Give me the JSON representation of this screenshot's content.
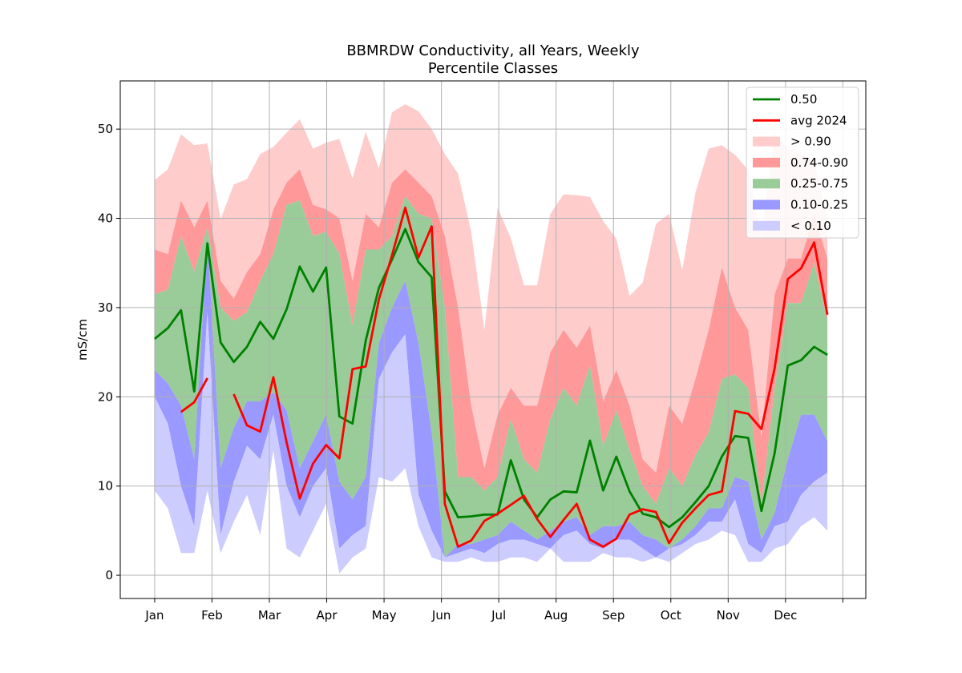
{
  "chart_data": {
    "type": "area",
    "title": [
      "BBMRDW Conductivity, all Years, Weekly",
      "Percentile Classes"
    ],
    "xlabel": "",
    "ylabel": "mS/cm",
    "ylim": [
      -2.6,
      55.4
    ],
    "xlim": [
      -0.6,
      12.4
    ],
    "grid": true,
    "legend_position": "top-right",
    "x_ticks": [
      0,
      1,
      2,
      3,
      4,
      5,
      6,
      7,
      8,
      9,
      10,
      11,
      12
    ],
    "x_tick_labels": [
      "Jan",
      "Feb",
      "Mar",
      "Apr",
      "May",
      "Jun",
      "Jul",
      "Aug",
      "Sep",
      "Oct",
      "Nov",
      "Dec",
      ""
    ],
    "y_ticks": [
      0,
      10,
      20,
      30,
      40,
      50
    ],
    "y_tick_labels": [
      "0",
      "10",
      "20",
      "30",
      "40",
      "50"
    ],
    "x_weeks": [
      0.0,
      0.23,
      0.46,
      0.69,
      0.92,
      1.15,
      1.38,
      1.61,
      1.84,
      2.07,
      2.3,
      2.53,
      2.76,
      2.99,
      3.22,
      3.45,
      3.68,
      3.91,
      4.14,
      4.37,
      4.6,
      4.83,
      5.06,
      5.29,
      5.52,
      5.75,
      5.98,
      6.21,
      6.44,
      6.67,
      6.9,
      7.13,
      7.36,
      7.59,
      7.82,
      8.05,
      8.28,
      8.51,
      8.74,
      8.97,
      9.2,
      9.43,
      9.66,
      9.89,
      10.12,
      10.35,
      10.58,
      10.81,
      11.04,
      11.27,
      11.5,
      11.73
    ],
    "bands": [
      {
        "name": "> 0.90",
        "color": "#ffcccc",
        "lower": [
          36.5,
          36.0,
          42.0,
          39.0,
          42.0,
          33.0,
          31.0,
          34.0,
          36.0,
          41.0,
          44.0,
          45.5,
          41.5,
          41.0,
          40.0,
          33.0,
          40.5,
          39.0,
          44.0,
          45.5,
          44.0,
          42.5,
          38.0,
          30.0,
          19.0,
          12.0,
          18.0,
          21.0,
          19.0,
          19.0,
          25.0,
          27.5,
          25.5,
          28.0,
          19.5,
          23.0,
          19.0,
          13.0,
          11.5,
          19.0,
          17.0,
          22.0,
          27.5,
          34.5,
          30.0,
          27.5,
          15.5,
          31.5,
          35.5,
          35.5,
          40.5,
          35.5
        ],
        "upper": [
          44.3,
          45.5,
          49.4,
          48.2,
          48.4,
          39.9,
          43.8,
          44.4,
          47.2,
          48.0,
          49.6,
          51.1,
          47.8,
          48.5,
          48.9,
          44.5,
          49.7,
          45.6,
          51.9,
          52.8,
          52.0,
          50.0,
          47.2,
          45.0,
          38.5,
          27.5,
          41.2,
          37.8,
          32.5,
          32.5,
          40.5,
          42.7,
          42.6,
          42.4,
          39.7,
          37.7,
          31.3,
          32.8,
          39.4,
          40.5,
          34.2,
          42.9,
          47.8,
          48.2,
          47.1,
          45.4,
          38.0,
          49.5,
          47.8,
          47.2,
          46.5,
          40.0
        ]
      },
      {
        "name": "0.74-0.90",
        "color": "#ff9999",
        "lower": [
          31.5,
          32.0,
          38.0,
          34.0,
          39.0,
          30.0,
          28.5,
          29.5,
          33.0,
          36.0,
          41.5,
          42.0,
          38.0,
          38.5,
          36.0,
          28.0,
          36.5,
          36.5,
          38.0,
          42.5,
          40.5,
          40.0,
          30.0,
          11.0,
          11.0,
          9.5,
          11.0,
          17.5,
          13.0,
          11.5,
          17.5,
          21.0,
          19.0,
          23.5,
          14.5,
          18.5,
          14.0,
          10.0,
          8.0,
          12.0,
          10.0,
          13.5,
          16.0,
          22.0,
          22.5,
          21.0,
          8.0,
          21.0,
          30.5,
          30.5,
          35.0,
          28.5
        ],
        "upper": [
          36.5,
          36.0,
          42.0,
          39.0,
          42.0,
          33.0,
          31.0,
          34.0,
          36.0,
          41.0,
          44.0,
          45.5,
          41.5,
          41.0,
          40.0,
          33.0,
          40.5,
          39.0,
          44.0,
          45.5,
          44.0,
          42.5,
          38.0,
          30.0,
          19.0,
          12.0,
          18.0,
          21.0,
          19.0,
          19.0,
          25.0,
          27.5,
          25.5,
          28.0,
          19.5,
          23.0,
          19.0,
          13.0,
          11.5,
          19.0,
          17.0,
          22.0,
          27.5,
          34.5,
          30.0,
          27.5,
          15.5,
          31.5,
          35.5,
          35.5,
          40.5,
          35.5
        ]
      },
      {
        "name": "0.25-0.75",
        "color": "#99cc99",
        "lower": [
          23.0,
          21.5,
          19.0,
          13.0,
          38.0,
          12.0,
          16.5,
          19.5,
          19.5,
          20.5,
          18.5,
          12.0,
          15.0,
          18.0,
          10.5,
          8.5,
          11.0,
          26.0,
          30.0,
          33.0,
          26.0,
          16.0,
          2.0,
          3.5,
          3.5,
          4.0,
          4.5,
          6.0,
          5.0,
          4.0,
          5.0,
          6.0,
          6.5,
          4.5,
          5.5,
          5.5,
          6.0,
          4.5,
          4.0,
          3.0,
          4.0,
          5.5,
          7.5,
          7.5,
          11.0,
          10.5,
          4.0,
          7.0,
          13.0,
          18.0,
          18.0,
          15.0
        ],
        "upper": [
          31.5,
          32.0,
          38.0,
          34.0,
          39.0,
          30.0,
          28.5,
          29.5,
          33.0,
          36.0,
          41.5,
          42.0,
          38.0,
          38.5,
          36.0,
          28.0,
          36.5,
          36.5,
          38.0,
          42.5,
          40.5,
          40.0,
          30.0,
          11.0,
          11.0,
          9.5,
          11.0,
          17.5,
          13.0,
          11.5,
          17.5,
          21.0,
          19.0,
          23.5,
          14.5,
          18.5,
          14.0,
          10.0,
          8.0,
          12.0,
          10.0,
          13.5,
          16.0,
          22.0,
          22.5,
          21.0,
          8.0,
          21.0,
          30.5,
          30.5,
          35.0,
          28.5
        ]
      },
      {
        "name": "0.10-0.25",
        "color": "#9999ff",
        "lower": [
          20.0,
          17.0,
          10.0,
          5.5,
          29.5,
          4.5,
          10.5,
          14.5,
          13.0,
          18.0,
          10.0,
          6.5,
          10.0,
          12.0,
          3.0,
          4.5,
          5.5,
          22.0,
          25.0,
          27.0,
          9.0,
          5.0,
          2.0,
          2.5,
          3.0,
          2.5,
          3.5,
          4.0,
          4.0,
          3.5,
          3.0,
          4.5,
          5.0,
          3.5,
          3.0,
          4.0,
          4.0,
          3.0,
          2.0,
          3.0,
          3.5,
          4.5,
          6.0,
          6.0,
          8.5,
          3.5,
          2.5,
          5.5,
          6.0,
          9.0,
          10.5,
          11.5
        ],
        "upper": [
          23.0,
          21.5,
          19.0,
          13.0,
          38.0,
          12.0,
          16.5,
          19.5,
          19.5,
          20.5,
          18.5,
          12.0,
          15.0,
          18.0,
          10.5,
          8.5,
          11.0,
          26.0,
          30.0,
          33.0,
          26.0,
          16.0,
          2.0,
          3.5,
          3.5,
          4.0,
          4.5,
          6.0,
          5.0,
          4.0,
          5.0,
          6.0,
          6.5,
          4.5,
          5.5,
          5.5,
          6.0,
          4.5,
          4.0,
          3.0,
          4.0,
          5.5,
          7.5,
          7.5,
          11.0,
          10.5,
          4.0,
          7.0,
          13.0,
          18.0,
          18.0,
          15.0
        ]
      },
      {
        "name": "< 0.10",
        "color": "#ccccff",
        "lower": [
          9.5,
          7.5,
          2.5,
          2.5,
          9.5,
          2.5,
          6.0,
          9.0,
          4.5,
          14.0,
          3.0,
          2.0,
          5.0,
          8.0,
          0.2,
          2.0,
          3.0,
          11.0,
          10.5,
          12.0,
          5.5,
          2.0,
          1.5,
          1.5,
          2.0,
          1.5,
          1.5,
          2.0,
          2.0,
          1.5,
          3.0,
          1.5,
          1.5,
          1.5,
          2.5,
          2.0,
          2.0,
          1.5,
          2.0,
          1.5,
          2.5,
          3.5,
          4.0,
          5.0,
          4.5,
          1.5,
          1.5,
          3.0,
          3.5,
          5.5,
          6.5,
          5.0
        ],
        "upper": [
          20.0,
          17.0,
          10.0,
          5.5,
          29.5,
          4.5,
          10.5,
          14.5,
          13.0,
          18.0,
          10.0,
          6.5,
          10.0,
          12.0,
          3.0,
          4.5,
          5.5,
          22.0,
          25.0,
          27.0,
          9.0,
          5.0,
          2.0,
          2.5,
          3.0,
          2.5,
          3.5,
          4.0,
          4.0,
          3.5,
          3.0,
          4.5,
          5.0,
          3.5,
          3.0,
          4.0,
          4.0,
          3.0,
          2.0,
          3.0,
          3.5,
          4.5,
          6.0,
          6.0,
          8.5,
          3.5,
          2.5,
          5.5,
          6.0,
          9.0,
          10.5,
          11.5
        ]
      }
    ],
    "series": [
      {
        "name": "0.50",
        "color": "#008000",
        "values": [
          26.5,
          27.7,
          29.7,
          20.6,
          37.2,
          26.1,
          23.9,
          25.6,
          28.4,
          26.5,
          29.8,
          34.6,
          31.8,
          34.5,
          17.8,
          17.0,
          26.3,
          32.2,
          35.4,
          38.8,
          35.1,
          33.4,
          9.4,
          6.5,
          6.6,
          6.8,
          6.8,
          12.9,
          8.5,
          6.5,
          8.5,
          9.4,
          9.3,
          15.1,
          9.5,
          13.3,
          9.4,
          6.9,
          6.5,
          5.4,
          6.5,
          8.2,
          10.0,
          13.3,
          15.6,
          15.4,
          7.2,
          13.7,
          23.5,
          24.1,
          25.6,
          24.7
        ]
      },
      {
        "name": "avg 2024",
        "color": "#ff0000",
        "values": [
          null,
          null,
          18.3,
          19.4,
          22.1,
          null,
          20.3,
          16.8,
          16.1,
          22.2,
          14.9,
          8.6,
          12.5,
          14.6,
          13.1,
          23.1,
          23.4,
          30.9,
          35.9,
          41.2,
          35.6,
          39.1,
          8.0,
          3.2,
          3.9,
          6.1,
          6.9,
          7.9,
          8.9,
          6.3,
          4.3,
          6.2,
          8.0,
          4.0,
          3.2,
          4.1,
          6.8,
          7.4,
          7.1,
          3.6,
          5.9,
          7.5,
          9.0,
          9.4,
          18.4,
          18.1,
          16.4,
          23.2,
          33.2,
          34.4,
          37.3,
          29.2
        ]
      }
    ]
  }
}
